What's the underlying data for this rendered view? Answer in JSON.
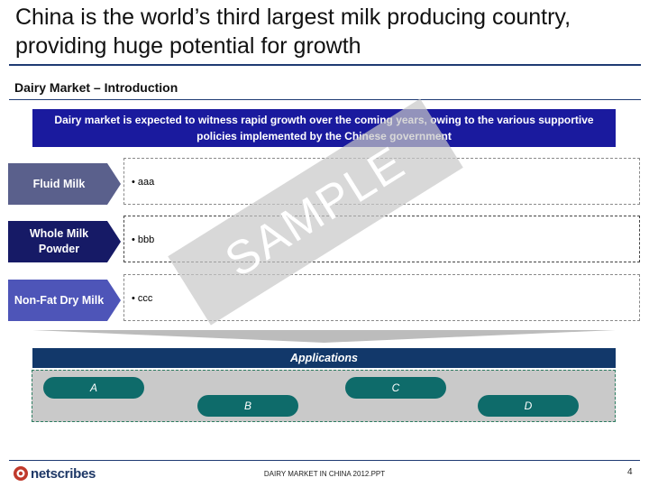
{
  "title": "China is the world’s third largest milk producing country, providing huge potential for growth",
  "subtitle": "Dairy Market – Introduction",
  "banner": "Dairy market is expected to witness rapid growth over the coming years, owing to the various supportive policies implemented by the Chinese government",
  "segments": [
    {
      "label": "Fluid Milk",
      "bullet": "• aaa"
    },
    {
      "label": "Whole Milk Powder",
      "bullet": "• bbb"
    },
    {
      "label": "Non-Fat Dry Milk",
      "bullet": "• ccc"
    }
  ],
  "watermark": "SAMPLE",
  "applications": {
    "heading": "Applications",
    "items": [
      "A",
      "B",
      "C",
      "D"
    ]
  },
  "footer": {
    "logo": "netscribes",
    "document_name": "DAIRY MARKET IN CHINA 2012.PPT",
    "page_number": "4"
  },
  "colors": {
    "title_rule": "#1f3b73",
    "banner": "#1a1a9e",
    "fluid_milk": "#5a608c",
    "whole_milk_powder": "#161a66",
    "non_fat_dry_milk": "#4e55b8",
    "applications_bar": "#12386a",
    "application_pill": "#0e6b6a"
  }
}
